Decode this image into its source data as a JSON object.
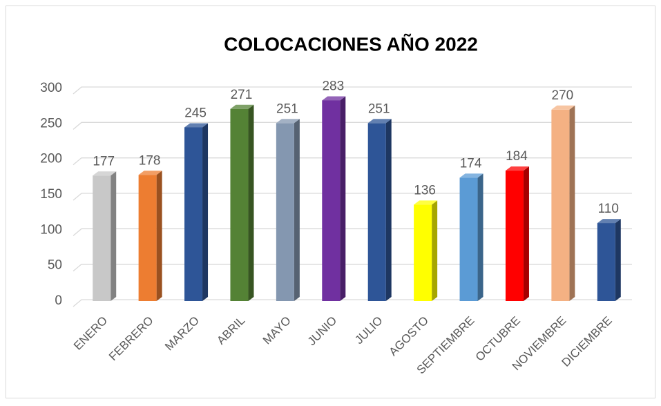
{
  "chart_data": {
    "type": "bar",
    "title": "COLOCACIONES  AÑO 2022",
    "categories": [
      "ENERO",
      "FEBRERO",
      "MARZO",
      "ABRIL",
      "MAYO",
      "JUNIO",
      "JULIO",
      "AGOSTO",
      "SEPTIEMBRE",
      "OCTUBRE",
      "NOVIEMBRE",
      "DICIEMBRE"
    ],
    "values": [
      177,
      178,
      245,
      271,
      251,
      283,
      251,
      136,
      174,
      184,
      270,
      110
    ],
    "colors": [
      "#c8c8c8",
      "#ed7d31",
      "#2e5597",
      "#548235",
      "#8497b0",
      "#7030a0",
      "#2e5597",
      "#ffff00",
      "#5b9bd5",
      "#ff0000",
      "#f4b183",
      "#2e5597"
    ],
    "ylim": [
      0,
      300
    ],
    "yticks": [
      0,
      50,
      100,
      150,
      200,
      250,
      300
    ],
    "grid": true
  }
}
